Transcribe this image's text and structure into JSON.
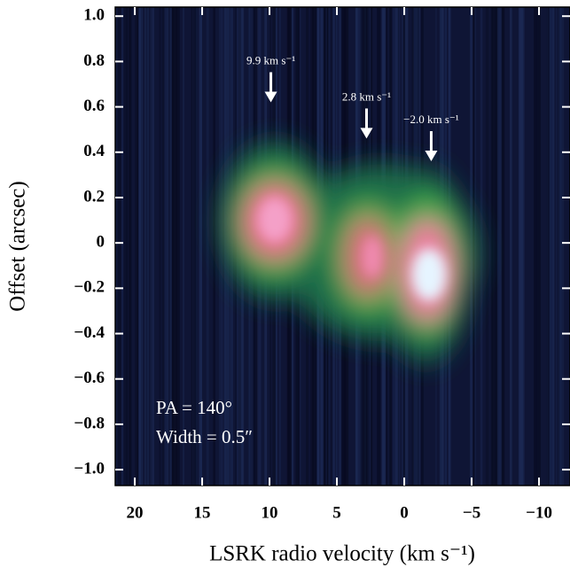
{
  "chart_data": {
    "type": "pv-diagram",
    "x_label": "LSRK radio velocity (km s⁻¹)",
    "y_label": "Offset (arcsec)",
    "xlim": [
      21.45,
      -12.3
    ],
    "ylim": [
      -1.07,
      1.04
    ],
    "xticks": [
      20,
      15,
      10,
      5,
      0,
      {
        "value": -5,
        "label": "−5"
      },
      {
        "value": -10,
        "label": "−10"
      }
    ],
    "yticks": [
      {
        "value": 1.0,
        "label": "1.0"
      },
      0.8,
      0.6,
      0.4,
      0.2,
      0,
      {
        "value": -0.2,
        "label": "−0.2"
      },
      {
        "value": -0.4,
        "label": "−0.4"
      },
      {
        "value": -0.6,
        "label": "−0.6"
      },
      {
        "value": -0.8,
        "label": "−0.8"
      },
      {
        "value": -1.0,
        "label": "−1.0"
      }
    ],
    "annotations": [
      {
        "x": 9.9,
        "y": 0.62,
        "text": "9.9 km s⁻¹"
      },
      {
        "x": 2.8,
        "y": 0.46,
        "text": "2.8 km s⁻¹"
      },
      {
        "x": -2.0,
        "y": 0.36,
        "text": "−2.0 km s⁻¹"
      }
    ],
    "inset_text": [
      "PA = 140°",
      "Width = 0.5″"
    ],
    "background_color": "#0f1535"
  }
}
